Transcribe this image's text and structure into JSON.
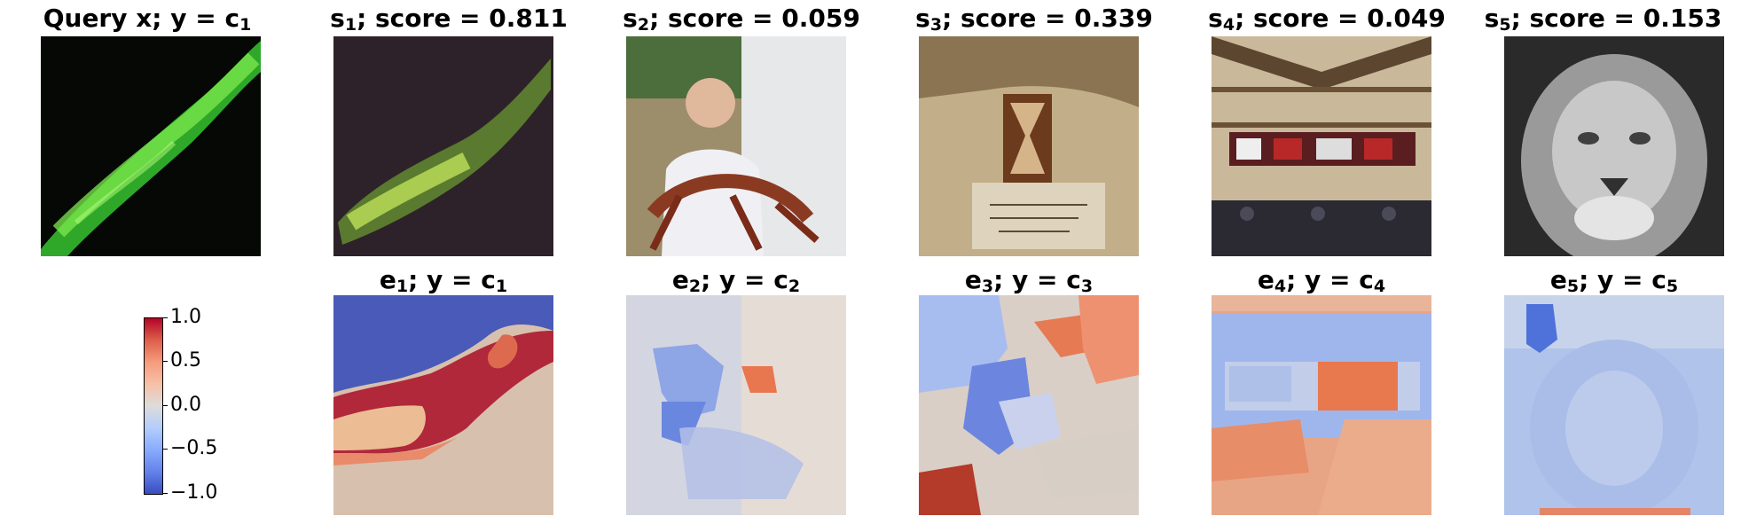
{
  "row1": {
    "query": {
      "title": "Query x; y = c",
      "sub": "1"
    },
    "samples": [
      {
        "name": "s",
        "sub": "1",
        "rest": "; score = 0.811"
      },
      {
        "name": "s",
        "sub": "2",
        "rest": "; score = 0.059"
      },
      {
        "name": "s",
        "sub": "3",
        "rest": "; score = 0.339"
      },
      {
        "name": "s",
        "sub": "4",
        "rest": "; score = 0.049"
      },
      {
        "name": "s",
        "sub": "5",
        "rest": "; score = 0.153"
      }
    ]
  },
  "row2": {
    "explanations": [
      {
        "name": "e",
        "sub": "1",
        "mid": "; y = c",
        "sub2": "1"
      },
      {
        "name": "e",
        "sub": "2",
        "mid": "; y = c",
        "sub2": "2"
      },
      {
        "name": "e",
        "sub": "3",
        "mid": "; y = c",
        "sub2": "3"
      },
      {
        "name": "e",
        "sub": "4",
        "mid": "; y = c",
        "sub2": "4"
      },
      {
        "name": "e",
        "sub": "5",
        "mid": "; y = c",
        "sub2": "5"
      }
    ]
  },
  "colorbar": {
    "ticks": [
      "1.0",
      "0.5",
      "0.0",
      "−0.5",
      "−1.0"
    ],
    "colormap": "coolwarm",
    "range": [
      -1.0,
      1.0
    ]
  },
  "colors": {
    "positive": "#b40426",
    "neutral": "#dddcdc",
    "negative": "#3b4cc0"
  }
}
